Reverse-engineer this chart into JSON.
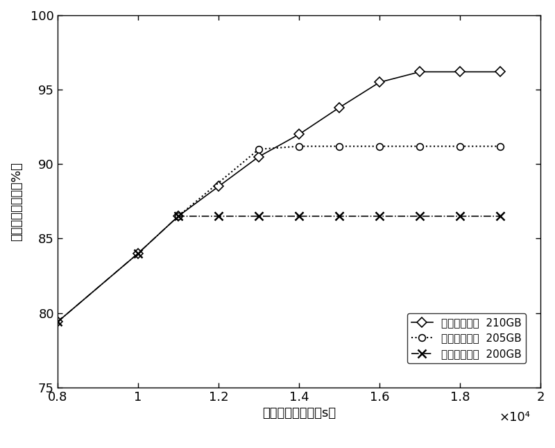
{
  "x_210": [
    0.8,
    1.0,
    1.1,
    1.2,
    1.3,
    1.4,
    1.5,
    1.6,
    1.7,
    1.8,
    1.9
  ],
  "y_210": [
    79.4,
    84.0,
    86.5,
    88.5,
    90.5,
    92.0,
    93.8,
    95.5,
    96.2,
    96.2,
    96.2
  ],
  "x_205": [
    1.1,
    1.3,
    1.4,
    1.5,
    1.6,
    1.7,
    1.8,
    1.9
  ],
  "y_205": [
    86.5,
    91.0,
    91.2,
    91.2,
    91.2,
    91.2,
    91.2,
    91.2
  ],
  "x_200": [
    0.8,
    1.0,
    1.1,
    1.2,
    1.3,
    1.4,
    1.5,
    1.6,
    1.7,
    1.8,
    1.9
  ],
  "y_200": [
    79.4,
    84.0,
    86.5,
    86.5,
    86.5,
    86.5,
    86.5,
    86.5,
    86.5,
    86.5,
    86.5
  ],
  "xlabel": "总计算时间上限［s］",
  "ylabel": "最大功能覆盖率［%］",
  "xlim_min": 0.8,
  "xlim_max": 1.9,
  "ylim_min": 75,
  "ylim_max": 100,
  "xtick_vals": [
    0.8,
    1.0,
    1.2,
    1.4,
    1.6,
    1.8,
    2.0
  ],
  "xtick_labels": [
    "0.8",
    "1",
    "1.2",
    "1.4",
    "1.6",
    "1.8",
    "2"
  ],
  "ytick_vals": [
    75,
    80,
    85,
    90,
    95,
    100
  ],
  "ytick_labels": [
    "75",
    "80",
    "85",
    "90",
    "95",
    "100"
  ],
  "scale_label": "×10⁴",
  "legend_210": "磁盘用量上限  210GB",
  "legend_205": "磁盘用量上限  205GB",
  "legend_200": "磁盘用量上限  200GB",
  "line_color": "#000000",
  "bg_color": "#ffffff",
  "tick_fontsize": 13,
  "label_fontsize": 13,
  "legend_fontsize": 11
}
